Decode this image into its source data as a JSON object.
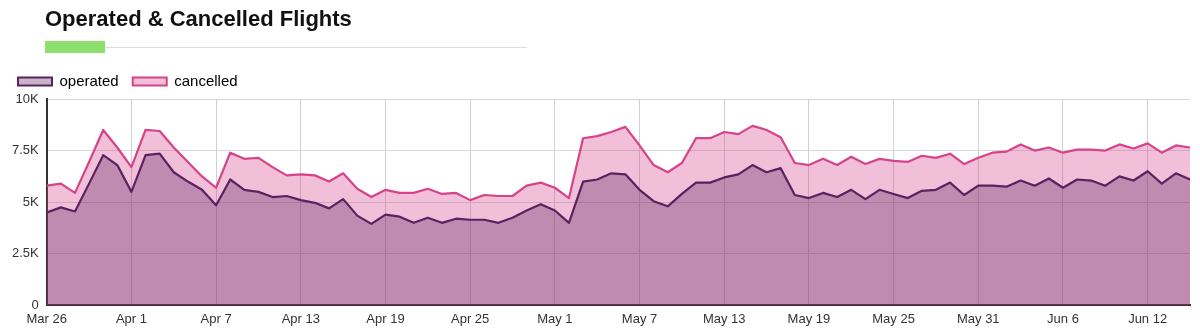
{
  "chart_data": {
    "type": "area",
    "title": "Operated & Cancelled Flights",
    "categories": [
      "Mar 26",
      null,
      null,
      null,
      null,
      null,
      "Apr 1",
      null,
      null,
      null,
      null,
      null,
      "Apr 7",
      null,
      null,
      null,
      null,
      null,
      "Apr 13",
      null,
      null,
      null,
      null,
      null,
      "Apr 19",
      null,
      null,
      null,
      null,
      null,
      "Apr 25",
      null,
      null,
      null,
      null,
      null,
      "May 1",
      null,
      null,
      null,
      null,
      null,
      "May 7",
      null,
      null,
      null,
      null,
      null,
      "May 13",
      null,
      null,
      null,
      null,
      null,
      "May 19",
      null,
      null,
      null,
      null,
      null,
      "May 25",
      null,
      null,
      null,
      null,
      null,
      "May 31",
      null,
      null,
      null,
      null,
      null,
      "Jun 6",
      null,
      null,
      null,
      null,
      null,
      "Jun 12",
      null,
      null,
      null
    ],
    "series": [
      {
        "name": "operated",
        "color": "#5c2160",
        "values": [
          4500,
          4750,
          4550,
          5900,
          7280,
          6800,
          5500,
          7280,
          7350,
          6450,
          6000,
          5600,
          4850,
          6100,
          5600,
          5500,
          5250,
          5300,
          5100,
          4970,
          4700,
          5150,
          4350,
          3950,
          4400,
          4300,
          4000,
          4250,
          4000,
          4200,
          4150,
          4150,
          4000,
          4250,
          4600,
          4900,
          4600,
          4000,
          6000,
          6100,
          6400,
          6350,
          5600,
          5050,
          4800,
          5400,
          5950,
          5950,
          6200,
          6350,
          6800,
          6450,
          6650,
          5350,
          5200,
          5450,
          5250,
          5600,
          5150,
          5600,
          5400,
          5200,
          5550,
          5600,
          5950,
          5350,
          5800,
          5800,
          5750,
          6050,
          5800,
          6150,
          5700,
          6100,
          6050,
          5800,
          6250,
          6050,
          6500,
          5900,
          6400,
          6100
        ]
      },
      {
        "name": "cancelled",
        "color": "#d6438a",
        "values": [
          5800,
          5900,
          5450,
          6950,
          8500,
          7650,
          6700,
          8500,
          8450,
          7650,
          6950,
          6250,
          5700,
          7400,
          7100,
          7150,
          6700,
          6300,
          6350,
          6300,
          6000,
          6400,
          5650,
          5250,
          5600,
          5450,
          5450,
          5650,
          5400,
          5450,
          5100,
          5350,
          5300,
          5300,
          5800,
          5950,
          5700,
          5200,
          8100,
          8200,
          8400,
          8650,
          7750,
          6800,
          6450,
          6900,
          8100,
          8100,
          8400,
          8300,
          8700,
          8500,
          8150,
          6900,
          6800,
          7100,
          6800,
          7200,
          6850,
          7100,
          7000,
          6950,
          7250,
          7150,
          7350,
          6850,
          7150,
          7400,
          7450,
          7800,
          7500,
          7650,
          7400,
          7550,
          7550,
          7500,
          7800,
          7600,
          7850,
          7400,
          7750,
          7650
        ]
      }
    ],
    "ylim": [
      0,
      10000
    ],
    "yticks": [
      0,
      {
        "value": 2500,
        "label": "2.5K"
      },
      {
        "value": 5000,
        "label": "5K"
      },
      {
        "value": 7500,
        "label": "7.5K"
      },
      {
        "value": 10000,
        "label": "10K"
      }
    ],
    "grid": true,
    "legend": "top left"
  }
}
